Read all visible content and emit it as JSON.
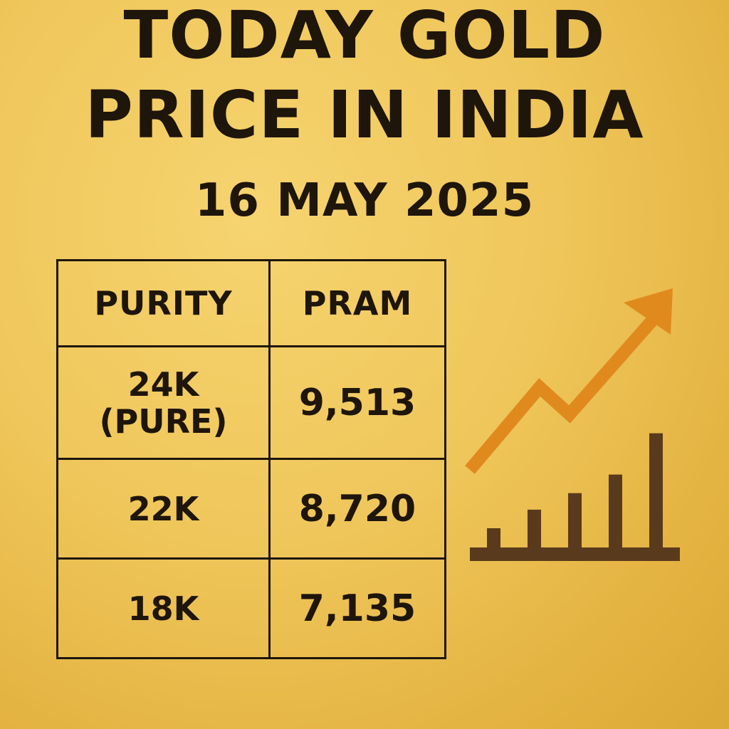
{
  "title": {
    "line1": "TODAY GOLD",
    "line2": "PRICE IN INDIA",
    "date": "16 MAY 2025"
  },
  "table": {
    "headers": [
      "PURITY",
      "PRAM"
    ],
    "rows": [
      {
        "purity": "24K",
        "purity_note": "(PURE)",
        "price": "9,513"
      },
      {
        "purity": "22K",
        "price": "8,720"
      },
      {
        "purity": "18K",
        "price": "7,135"
      }
    ]
  },
  "graphic": {
    "icon": "rising-bar-chart-with-trend-arrow-icon",
    "bar_levels": [
      1,
      1.9,
      2.7,
      3.6,
      5.6
    ],
    "colors": {
      "arrow": "#e08a1e",
      "bars": "#5a3a1c"
    }
  },
  "colors": {
    "background": "#efc65a",
    "text": "#1e150b",
    "table_border": "#1e160c"
  }
}
